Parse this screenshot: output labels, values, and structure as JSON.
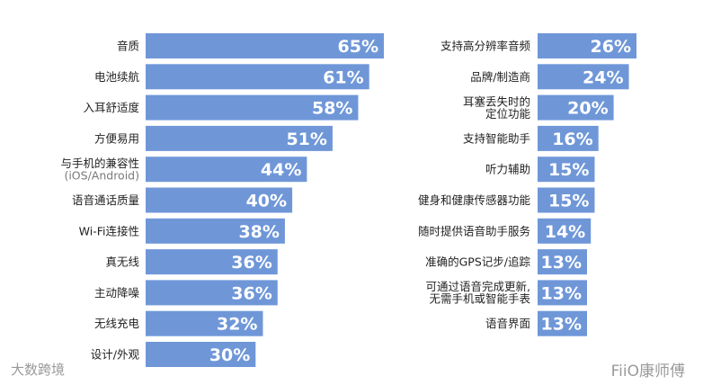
{
  "chart_data": [
    {
      "type": "bar",
      "orientation": "horizontal",
      "categories": [
        "音质",
        "电池续航",
        "入耳舒适度",
        "方便易用",
        "与手机的兼容性\n(iOS/Android)",
        "语音通话质量",
        "Wi-Fi连接性",
        "真无线",
        "主动降噪",
        "无线充电",
        "设计/外观"
      ],
      "values": [
        65,
        61,
        58,
        51,
        44,
        40,
        38,
        36,
        36,
        32,
        30
      ],
      "data_labels": [
        "65%",
        "61%",
        "58%",
        "51%",
        "44%",
        "40%",
        "38%",
        "36%",
        "36%",
        "32%",
        "30%"
      ],
      "xlim": [
        0,
        65
      ],
      "grid": false
    },
    {
      "type": "bar",
      "orientation": "horizontal",
      "categories": [
        "支持高分辨率音频",
        "品牌/制造商",
        "耳塞丢失时的\n定位功能",
        "支持智能助手",
        "听力辅助",
        "健身和健康传感器功能",
        "随时提供语音助手服务",
        "准确的GPS记步/追踪",
        "可通过语音完成更新,\n无需手机或智能手表",
        "语音界面"
      ],
      "values": [
        26,
        24,
        20,
        16,
        15,
        15,
        14,
        13,
        13,
        13
      ],
      "data_labels": [
        "26%",
        "24%",
        "20%",
        "16%",
        "15%",
        "15%",
        "14%",
        "13%",
        "13%",
        "13%"
      ],
      "xlim": [
        0,
        26
      ],
      "grid": false
    }
  ],
  "colors": {
    "bar": "#6f97d8",
    "label_text": "#1f1f1f",
    "value_text": "#ffffff"
  },
  "watermark": {
    "left": "大数跨境",
    "right": "FiiO康师傅"
  }
}
